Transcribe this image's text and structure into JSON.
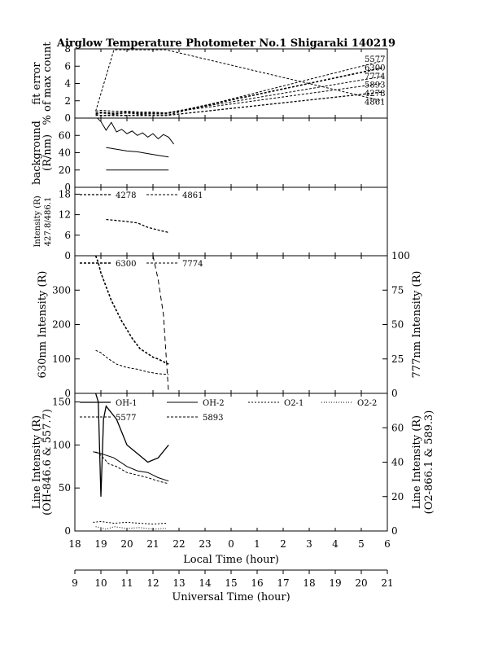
{
  "title": "Airglow Temperature Photometer No.1  Shigaraki  140219",
  "chart_data": [
    {
      "id": "fit-error",
      "type": "line",
      "ylabel": [
        "fit error",
        "% of max count"
      ],
      "ylim": [
        0,
        8
      ],
      "yticks": [
        0,
        2,
        4,
        6,
        8
      ],
      "right_labels": [
        "5577",
        "6300",
        "7774",
        "5893",
        "4278",
        "4861"
      ],
      "series": [
        {
          "name": "5577",
          "x": [
            18.8,
            19.0,
            19.5,
            20.0,
            20.5,
            21.0,
            21.5,
            29.8
          ],
          "y": [
            0.3,
            0.3,
            0.4,
            0.3,
            0.4,
            0.3,
            0.3,
            6.6
          ]
        },
        {
          "name": "6300",
          "x": [
            18.8,
            19.0,
            19.5,
            20.0,
            20.5,
            21.0,
            21.5,
            29.8
          ],
          "y": [
            0.5,
            0.6,
            0.5,
            0.6,
            0.5,
            0.5,
            0.5,
            5.8
          ]
        },
        {
          "name": "7774",
          "x": [
            18.8,
            19.0,
            19.5,
            20.0,
            20.5,
            21.0,
            21.5,
            29.8
          ],
          "y": [
            0.6,
            0.7,
            0.6,
            0.7,
            0.6,
            0.6,
            0.6,
            4.8
          ]
        },
        {
          "name": "5893",
          "x": [
            18.8,
            19.0,
            19.5,
            20.0,
            20.5,
            21.0,
            21.5,
            29.8
          ],
          "y": [
            0.8,
            0.9,
            0.8,
            0.8,
            0.7,
            0.7,
            0.6,
            4.0
          ]
        },
        {
          "name": "4278",
          "x": [
            18.8,
            19.0,
            19.5,
            20.0,
            20.5,
            21.0,
            21.5,
            29.8
          ],
          "y": [
            0.4,
            0.3,
            0.3,
            0.3,
            0.3,
            0.3,
            0.3,
            3.0
          ]
        },
        {
          "name": "4861",
          "x": [
            18.8,
            19.5,
            21.5,
            29.8
          ],
          "y": [
            0.8,
            7.9,
            7.9,
            2.0
          ]
        }
      ]
    },
    {
      "id": "background",
      "type": "line",
      "ylabel": [
        "background",
        "(R/nm)"
      ],
      "ylim": [
        0,
        80
      ],
      "yticks": [
        0,
        20,
        40,
        60
      ],
      "series": [
        {
          "x": [
            18.8,
            19.0,
            19.2,
            19.4,
            19.6,
            19.8,
            20.0,
            20.2,
            20.4,
            20.6,
            20.8,
            21.0,
            21.2,
            21.4,
            21.6,
            21.8
          ],
          "y": [
            82,
            76,
            66,
            75,
            64,
            67,
            62,
            65,
            60,
            63,
            58,
            62,
            56,
            61,
            58,
            50
          ]
        },
        {
          "x": [
            19.2,
            19.6,
            20.0,
            20.4,
            20.8,
            21.2,
            21.6
          ],
          "y": [
            46,
            44,
            42,
            41,
            39,
            37,
            35
          ]
        },
        {
          "x": [
            19.2,
            19.6,
            20.0,
            20.4,
            20.8,
            21.2,
            21.6
          ],
          "y": [
            20,
            20,
            20,
            20,
            20,
            20,
            20
          ]
        }
      ]
    },
    {
      "id": "intensity-4278-4861",
      "type": "line",
      "ylabel": [
        "Intensity (R)",
        "427.8/486.1"
      ],
      "ylim": [
        0,
        20
      ],
      "yticks": [
        0,
        6,
        12,
        18
      ],
      "legend": [
        "4278",
        "4861"
      ],
      "series": [
        {
          "name": "4278",
          "x": [
            19.2,
            19.6,
            20.0,
            20.4,
            20.8,
            21.2,
            21.6
          ],
          "y": [
            10.6,
            10.3,
            10.0,
            9.6,
            8.3,
            7.5,
            6.8
          ]
        },
        {
          "name": "4861",
          "x": [],
          "y": []
        }
      ]
    },
    {
      "id": "intensity-6300-7774",
      "type": "line",
      "ylabel": "630nm Intensity (R)",
      "ylabel_right": "777nm Intensity (R)",
      "ylim": [
        0,
        400
      ],
      "ylim_right": [
        0,
        100
      ],
      "yticks": [
        0,
        100,
        200,
        300
      ],
      "yticks_right": [
        0,
        25,
        50,
        75,
        100
      ],
      "legend": [
        "6300",
        "7774"
      ],
      "series": [
        {
          "name": "6300",
          "x": [
            18.8,
            18.9,
            19.0,
            19.2,
            19.4,
            19.6,
            19.8,
            20.0,
            20.2,
            20.5,
            20.8,
            21.0,
            21.2,
            21.4,
            21.6
          ],
          "y": [
            400,
            380,
            350,
            310,
            270,
            240,
            210,
            185,
            160,
            130,
            115,
            105,
            100,
            92,
            85
          ]
        },
        {
          "name": "7774",
          "x": [
            18.8,
            19.0,
            19.3,
            19.6,
            20.0,
            20.4,
            20.8,
            21.2,
            21.6
          ],
          "y": [
            125,
            118,
            100,
            85,
            75,
            70,
            62,
            57,
            55
          ]
        },
        {
          "name": "7774-scaled",
          "x": [
            21.0,
            21.2,
            21.4,
            21.6
          ],
          "y": [
            400,
            330,
            230,
            0
          ]
        }
      ]
    },
    {
      "id": "line-intensity",
      "type": "line",
      "ylabel": [
        "Line Intensity (R)",
        "(OH-846.6 & 557.7)"
      ],
      "ylabel_right": [
        "Line Intensity (R)",
        "(O2-866.1 & 589.3)"
      ],
      "ylim": [
        0,
        160
      ],
      "ylim_right": [
        0,
        80
      ],
      "yticks": [
        0,
        50,
        100,
        150
      ],
      "yticks_right": [
        0,
        20,
        40,
        60
      ],
      "legend": [
        "OH-1",
        "OH-2",
        "O2-1",
        "O2-2",
        "5577",
        "5893"
      ],
      "series": [
        {
          "name": "OH-1",
          "x": [
            18.8,
            18.9,
            19.0,
            19.1,
            19.2,
            19.6,
            20.0,
            20.4,
            20.8,
            21.2,
            21.6
          ],
          "y": [
            160,
            150,
            40,
            130,
            145,
            130,
            100,
            90,
            80,
            85,
            100
          ]
        },
        {
          "name": "OH-2",
          "x": [
            18.7,
            19.0,
            19.5,
            20.0,
            20.4,
            20.8,
            21.2,
            21.6
          ],
          "y": [
            92,
            90,
            85,
            75,
            70,
            68,
            62,
            58
          ]
        },
        {
          "name": "O2-1",
          "x": [
            18.7,
            19.0,
            19.5,
            20.0,
            20.5,
            21.0,
            21.5
          ],
          "y": [
            10,
            11,
            9,
            10,
            9,
            8,
            9
          ]
        },
        {
          "name": "O2-2",
          "x": [
            18.8,
            19.0,
            19.2,
            19.5,
            20.0,
            20.5,
            21.0,
            21.5
          ],
          "y": [
            5,
            4,
            2,
            5,
            3,
            4,
            2,
            3
          ]
        },
        {
          "name": "5577",
          "x": [
            18.8,
            19.0,
            19.3,
            19.6,
            20.0,
            20.4,
            20.8,
            21.2,
            21.6
          ],
          "y": [
            92,
            88,
            78,
            75,
            68,
            65,
            62,
            58,
            55
          ]
        },
        {
          "name": "5893",
          "x": [],
          "y": []
        }
      ]
    }
  ],
  "x_axes": {
    "local": {
      "label": "Local Time (hour)",
      "ticks": [
        "18",
        "19",
        "20",
        "21",
        "22",
        "23",
        "0",
        "1",
        "2",
        "3",
        "4",
        "5",
        "6"
      ]
    },
    "universal": {
      "label": "Universal Time (hour)",
      "ticks": [
        "9",
        "10",
        "11",
        "12",
        "13",
        "14",
        "15",
        "16",
        "17",
        "18",
        "19",
        "20",
        "21"
      ]
    }
  }
}
